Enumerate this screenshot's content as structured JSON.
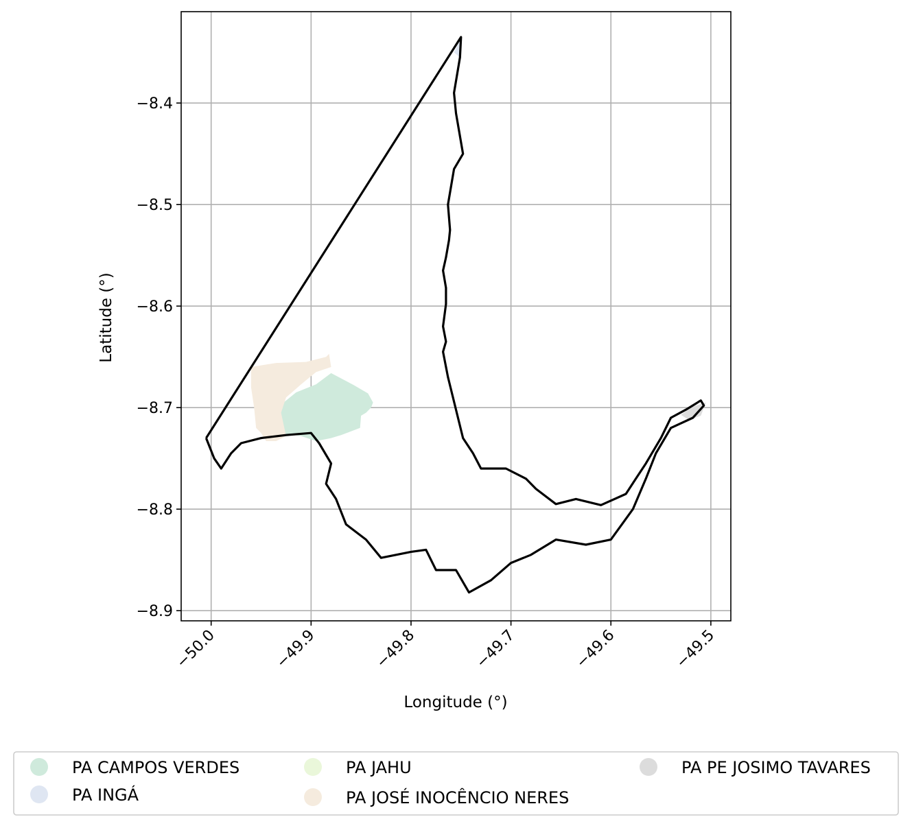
{
  "map": {
    "xlabel": "Longitude (°)",
    "ylabel": "Latitude (°)",
    "xlim": [
      -50.03,
      -49.48
    ],
    "ylim": [
      -8.91,
      -8.31
    ],
    "grid": true,
    "x_ticks": [
      -50.0,
      -49.9,
      -49.8,
      -49.7,
      -49.6,
      -49.5
    ],
    "x_tick_labels": [
      "−50.0",
      "−49.9",
      "−49.8",
      "−49.7",
      "−49.6",
      "−49.5"
    ],
    "y_ticks": [
      -8.4,
      -8.5,
      -8.6,
      -8.7,
      -8.8,
      -8.9
    ],
    "y_tick_labels": [
      "−8.4",
      "−8.5",
      "−8.6",
      "−8.7",
      "−8.8",
      "−8.9"
    ],
    "boundary_color": "#000000",
    "grid_color": "#b0b0b0"
  },
  "regions": [
    {
      "name": "PA CAMPOS VERDES",
      "color": "#cfeadc",
      "polygon": [
        [
          -49.93,
          -8.697
        ],
        [
          -49.915,
          -8.685
        ],
        [
          -49.895,
          -8.677
        ],
        [
          -49.88,
          -8.666
        ],
        [
          -49.857,
          -8.678
        ],
        [
          -49.843,
          -8.686
        ],
        [
          -49.838,
          -8.695
        ],
        [
          -49.84,
          -8.7
        ],
        [
          -49.845,
          -8.705
        ],
        [
          -49.85,
          -8.708
        ],
        [
          -49.851,
          -8.72
        ],
        [
          -49.87,
          -8.727
        ],
        [
          -49.88,
          -8.73
        ],
        [
          -49.895,
          -8.733
        ],
        [
          -49.91,
          -8.728
        ],
        [
          -49.93,
          -8.725
        ],
        [
          -49.932,
          -8.71
        ]
      ]
    },
    {
      "name": "PA INGÁ",
      "color": "#dfe6f2",
      "polygon": [
        [
          -49.75,
          -8.337
        ],
        [
          -49.75,
          -8.356
        ],
        [
          -49.757,
          -8.35
        ],
        [
          -49.752,
          -8.34
        ]
      ]
    },
    {
      "name": "PA JAHU",
      "color": "#eaf7da",
      "polygon": []
    },
    {
      "name": "PA JOSÉ INOCÊNCIO NERES",
      "color": "#f5ebde",
      "polygon": [
        [
          -49.96,
          -8.66
        ],
        [
          -49.935,
          -8.656
        ],
        [
          -49.905,
          -8.655
        ],
        [
          -49.885,
          -8.65
        ],
        [
          -49.882,
          -8.647
        ],
        [
          -49.88,
          -8.66
        ],
        [
          -49.895,
          -8.665
        ],
        [
          -49.91,
          -8.677
        ],
        [
          -49.925,
          -8.69
        ],
        [
          -49.93,
          -8.705
        ],
        [
          -49.925,
          -8.728
        ],
        [
          -49.935,
          -8.733
        ],
        [
          -49.945,
          -8.733
        ],
        [
          -49.95,
          -8.725
        ],
        [
          -49.955,
          -8.72
        ],
        [
          -49.957,
          -8.7
        ],
        [
          -49.96,
          -8.68
        ]
      ]
    },
    {
      "name": "PA PE JOSIMO TAVARES",
      "color": "#dcdcdc",
      "polygon": [
        [
          -49.53,
          -8.707
        ],
        [
          -49.518,
          -8.699
        ],
        [
          -49.505,
          -8.695
        ],
        [
          -49.51,
          -8.708
        ],
        [
          -49.522,
          -8.712
        ]
      ]
    }
  ],
  "outline_paths": [
    [
      [
        -50.005,
        -8.73
      ],
      [
        -49.75,
        -8.335
      ],
      [
        -49.751,
        -8.355
      ],
      [
        -49.757,
        -8.39
      ],
      [
        -49.755,
        -8.41
      ],
      [
        -49.748,
        -8.45
      ],
      [
        -49.757,
        -8.465
      ],
      [
        -49.763,
        -8.5
      ],
      [
        -49.761,
        -8.525
      ],
      [
        -49.762,
        -8.535
      ],
      [
        -49.765,
        -8.552
      ],
      [
        -49.768,
        -8.565
      ],
      [
        -49.765,
        -8.582
      ],
      [
        -49.765,
        -8.598
      ],
      [
        -49.768,
        -8.62
      ],
      [
        -49.765,
        -8.635
      ],
      [
        -49.768,
        -8.645
      ],
      [
        -49.763,
        -8.67
      ],
      [
        -49.758,
        -8.69
      ],
      [
        -49.753,
        -8.71
      ],
      [
        -49.748,
        -8.73
      ],
      [
        -49.738,
        -8.745
      ],
      [
        -49.73,
        -8.76
      ],
      [
        -49.705,
        -8.76
      ],
      [
        -49.685,
        -8.77
      ],
      [
        -49.675,
        -8.78
      ],
      [
        -49.655,
        -8.795
      ],
      [
        -49.635,
        -8.79
      ],
      [
        -49.61,
        -8.796
      ],
      [
        -49.585,
        -8.785
      ],
      [
        -49.575,
        -8.77
      ],
      [
        -49.565,
        -8.755
      ],
      [
        -49.55,
        -8.73
      ],
      [
        -49.54,
        -8.71
      ],
      [
        -49.525,
        -8.702
      ],
      [
        -49.51,
        -8.693
      ],
      [
        -49.507,
        -8.698
      ],
      [
        -49.518,
        -8.71
      ],
      [
        -49.54,
        -8.72
      ],
      [
        -49.555,
        -8.745
      ],
      [
        -49.565,
        -8.77
      ],
      [
        -49.578,
        -8.8
      ],
      [
        -49.6,
        -8.83
      ],
      [
        -49.625,
        -8.835
      ],
      [
        -49.655,
        -8.83
      ],
      [
        -49.68,
        -8.845
      ],
      [
        -49.7,
        -8.853
      ],
      [
        -49.72,
        -8.87
      ],
      [
        -49.742,
        -8.882
      ],
      [
        -49.755,
        -8.86
      ],
      [
        -49.775,
        -8.86
      ],
      [
        -49.785,
        -8.84
      ],
      [
        -49.8,
        -8.842
      ],
      [
        -49.83,
        -8.848
      ],
      [
        -49.845,
        -8.83
      ],
      [
        -49.865,
        -8.815
      ],
      [
        -49.875,
        -8.79
      ],
      [
        -49.885,
        -8.775
      ],
      [
        -49.88,
        -8.755
      ],
      [
        -49.892,
        -8.735
      ],
      [
        -49.9,
        -8.725
      ],
      [
        -49.925,
        -8.727
      ],
      [
        -49.95,
        -8.73
      ],
      [
        -49.97,
        -8.735
      ],
      [
        -49.98,
        -8.745
      ],
      [
        -49.99,
        -8.76
      ],
      [
        -49.997,
        -8.75
      ],
      [
        -50.005,
        -8.73
      ]
    ]
  ],
  "legend": {
    "items": [
      {
        "label": "PA CAMPOS VERDES",
        "color": "#cfeadc"
      },
      {
        "label": "PA INGÁ",
        "color": "#dfe6f2"
      },
      {
        "label": "PA JAHU",
        "color": "#eaf7da"
      },
      {
        "label": "PA JOSÉ INOCÊNCIO NERES",
        "color": "#f5ebde"
      },
      {
        "label": "PA PE JOSIMO TAVARES",
        "color": "#dcdcdc"
      }
    ]
  }
}
